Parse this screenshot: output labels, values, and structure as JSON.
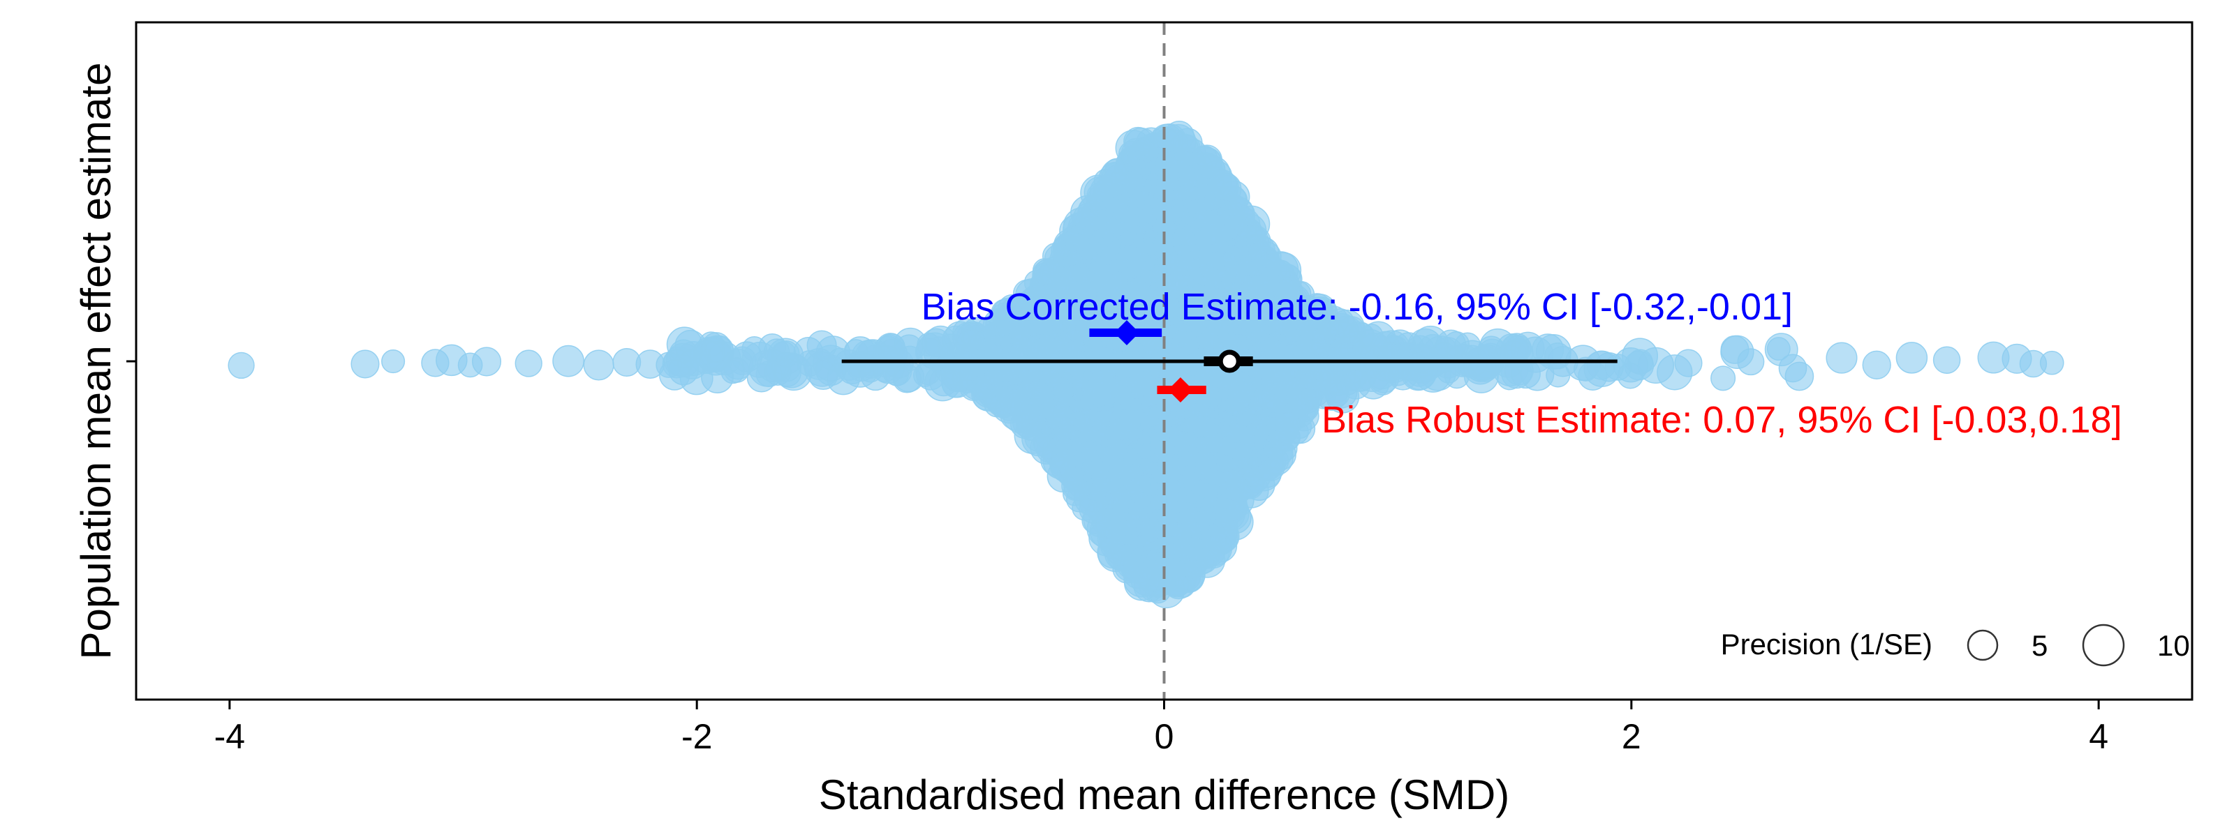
{
  "chart_data": {
    "type": "scatter",
    "subtype": "orchard-plot",
    "xlabel": "Standardised mean difference (SMD)",
    "ylabel": "Population mean effect estimate",
    "xlim": [
      -4.4,
      4.4
    ],
    "x_ticks": [
      -4,
      -2,
      0,
      2,
      4
    ],
    "x_tick_labels": [
      "-4",
      "-2",
      "0",
      "2",
      "4"
    ],
    "reference_line_x": 0,
    "colors": {
      "points": "#8ecdf0",
      "overall": "#000000",
      "bias_corrected": "#0000ff",
      "bias_robust": "#ff0000",
      "reference_line": "#808080"
    },
    "overall_estimate": {
      "estimate": 0.28,
      "ci": [
        0.17,
        0.38
      ],
      "prediction_interval": [
        -1.38,
        1.94
      ]
    },
    "bias_corrected": {
      "label": "Bias Corrected Estimate: -0.16, 95% CI [-0.32,-0.01]",
      "estimate": -0.16,
      "ci": [
        -0.32,
        -0.01
      ]
    },
    "bias_robust": {
      "label": "Bias Robust Estimate: 0.07, 95% CI [-0.03,0.18]",
      "estimate": 0.07,
      "ci": [
        -0.03,
        0.18
      ]
    },
    "effect_size_distribution": {
      "n_points": 2600,
      "core_sd": 0.35,
      "outliers": [
        -3.95,
        -3.42,
        -3.3,
        -3.12,
        -3.05,
        -2.97,
        -2.9,
        -2.72,
        -2.55,
        -2.42,
        -2.3,
        -2.2,
        -2.12,
        2.9,
        3.05,
        3.2,
        3.35,
        3.55,
        3.65,
        3.72,
        3.8
      ]
    },
    "legend": {
      "title": "Precision (1/SE)",
      "entries": [
        {
          "label": "5",
          "precision": 5
        },
        {
          "label": "10",
          "precision": 10
        }
      ],
      "placement": "bottom-right"
    }
  }
}
